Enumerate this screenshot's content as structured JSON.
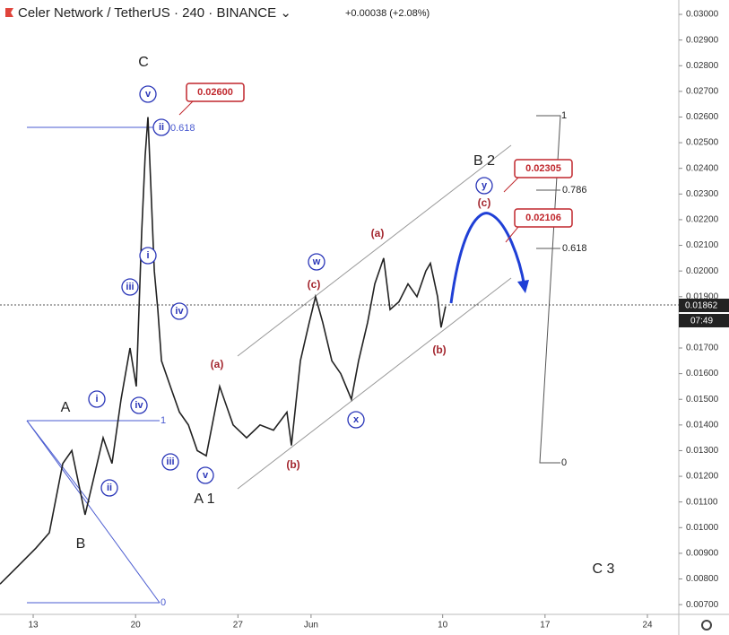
{
  "chart_data": {
    "type": "line",
    "title": "Celer Network / TetherUS · 240 · BINANCE ⌄",
    "subtitle": "+0.00038 (+2.08%)",
    "last_price_label": "0.01862",
    "countdown": "07:49",
    "color": "#222222",
    "x": [
      10.73,
      11.96,
      13.18,
      14.1,
      15.02,
      15.64,
      16.55,
      17.17,
      17.78,
      18.39,
      19.01,
      19.62,
      20.05,
      20.42,
      20.66,
      20.85,
      21.03,
      21.28,
      21.52,
      21.77,
      22.38,
      23.0,
      23.61,
      24.22,
      24.83,
      25.75,
      26.67,
      27.59,
      28.51,
      29.43,
      30.35,
      30.66,
      31.27,
      31.88,
      32.31,
      32.8,
      33.42,
      34.03,
      34.76,
      35.25,
      35.87,
      36.36,
      36.97,
      37.4,
      38.01,
      38.63,
      39.24,
      39.85,
      40.16,
      40.65,
      40.89,
      41.2
    ],
    "values": [
      0.0078,
      0.0085,
      0.0092,
      0.0098,
      0.0125,
      0.013,
      0.0105,
      0.012,
      0.0135,
      0.0125,
      0.015,
      0.017,
      0.0155,
      0.0215,
      0.0245,
      0.026,
      0.0235,
      0.02,
      0.0185,
      0.0165,
      0.0155,
      0.0145,
      0.014,
      0.013,
      0.0128,
      0.0155,
      0.014,
      0.0135,
      0.014,
      0.0138,
      0.0145,
      0.0132,
      0.0165,
      0.018,
      0.019,
      0.018,
      0.0165,
      0.016,
      0.015,
      0.0165,
      0.018,
      0.0195,
      0.0205,
      0.0185,
      0.0188,
      0.0195,
      0.019,
      0.02,
      0.0203,
      0.019,
      0.0178,
      0.01862
    ],
    "xlim": [
      10.73,
      57.33
    ],
    "ylim": [
      0.00662,
      0.03056
    ],
    "xticks": [
      13,
      20,
      27,
      {
        "value": 32,
        "label": "Jun"
      },
      {
        "value": 41,
        "label": "10"
      },
      {
        "value": 48,
        "label": "17"
      },
      {
        "value": 55,
        "label": "24"
      }
    ],
    "yticks": [
      {
        "value": 0.007,
        "label": "0.00700"
      },
      {
        "value": 0.008,
        "label": "0.00800"
      },
      {
        "value": 0.009,
        "label": "0.00900"
      },
      {
        "value": 0.01,
        "label": "0.01000"
      },
      {
        "value": 0.011,
        "label": "0.01100"
      },
      {
        "value": 0.012,
        "label": "0.01200"
      },
      {
        "value": 0.013,
        "label": "0.01300"
      },
      {
        "value": 0.014,
        "label": "0.01400"
      },
      {
        "value": 0.015,
        "label": "0.01500"
      },
      {
        "value": 0.016,
        "label": "0.01600"
      },
      {
        "value": 0.017,
        "label": "0.01700"
      },
      {
        "value": 0.018,
        "label": "0.01800"
      },
      {
        "value": 0.019,
        "label": "0.01900"
      },
      {
        "value": 0.02,
        "label": "0.02000"
      },
      {
        "value": 0.021,
        "label": "0.02100"
      },
      {
        "value": 0.022,
        "label": "0.02200"
      },
      {
        "value": 0.023,
        "label": "0.02300"
      },
      {
        "value": 0.024,
        "label": "0.02400"
      },
      {
        "value": 0.025,
        "label": "0.02500"
      },
      {
        "value": 0.026,
        "label": "0.02600"
      },
      {
        "value": 0.027,
        "label": "0.02700"
      },
      {
        "value": 0.028,
        "label": "0.02800"
      },
      {
        "value": 0.029,
        "label": "0.02900"
      },
      {
        "value": 0.03,
        "label": "0.03000"
      }
    ],
    "grid": false
  },
  "annotations": [
    "C",
    "v",
    "0.02600",
    "ii",
    "0.618",
    "i",
    "iii",
    "iv",
    "i",
    "iv",
    "ii",
    "iii",
    "v",
    "A",
    "B",
    "A 1",
    "1",
    "0",
    "(a)",
    "(b)",
    "(c)",
    "w",
    "(a)",
    "x",
    "(b)",
    "B 2",
    "y",
    "(c)",
    "0.02305",
    "0.02106",
    "1",
    "0.786",
    "0.618",
    "0",
    "C 3"
  ]
}
